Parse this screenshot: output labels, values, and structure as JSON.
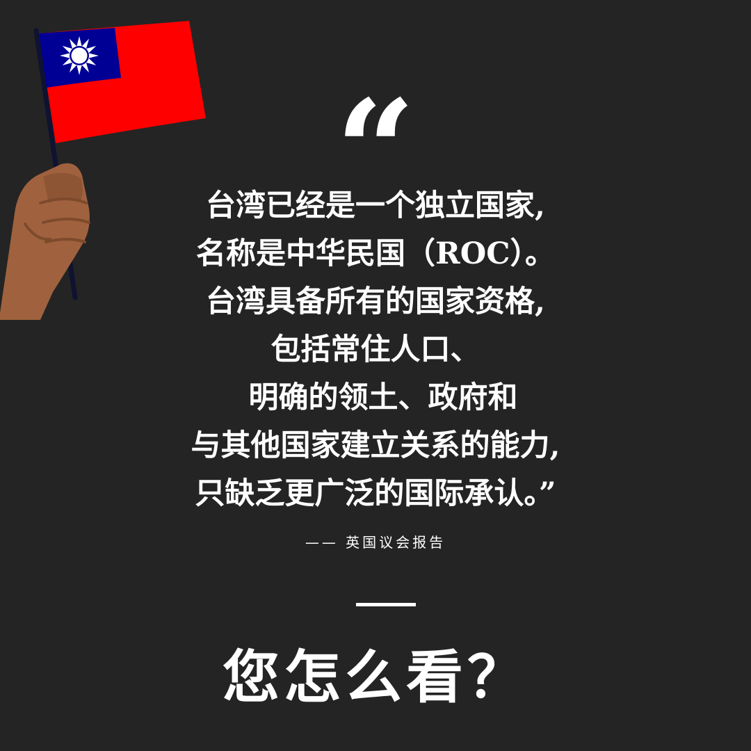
{
  "flag": {
    "icon": "roc-flag-icon",
    "hand_icon": "raised-hand-icon",
    "colors": {
      "red": "#FE0000",
      "blue": "#000095",
      "sun": "#FFFFFF",
      "pole": "#0f1230",
      "skin": "#A0623E",
      "skin_shadow": "#7E4A2C"
    }
  },
  "quote": {
    "open_mark": "“",
    "lines": [
      "台湾已经是一个独立国家,",
      "名称是中华民国（ROC）。",
      "台湾具备所有的国家资格,",
      "包括常住人口、",
      "明确的领土、政府和",
      "与其他国家建立关系的能力,",
      "只缺乏更广泛的国际承认。”"
    ]
  },
  "attribution": "—— 英国议会报告",
  "question": "您怎么看？",
  "colors": {
    "background": "#242424",
    "text": "#FFFFFF"
  }
}
